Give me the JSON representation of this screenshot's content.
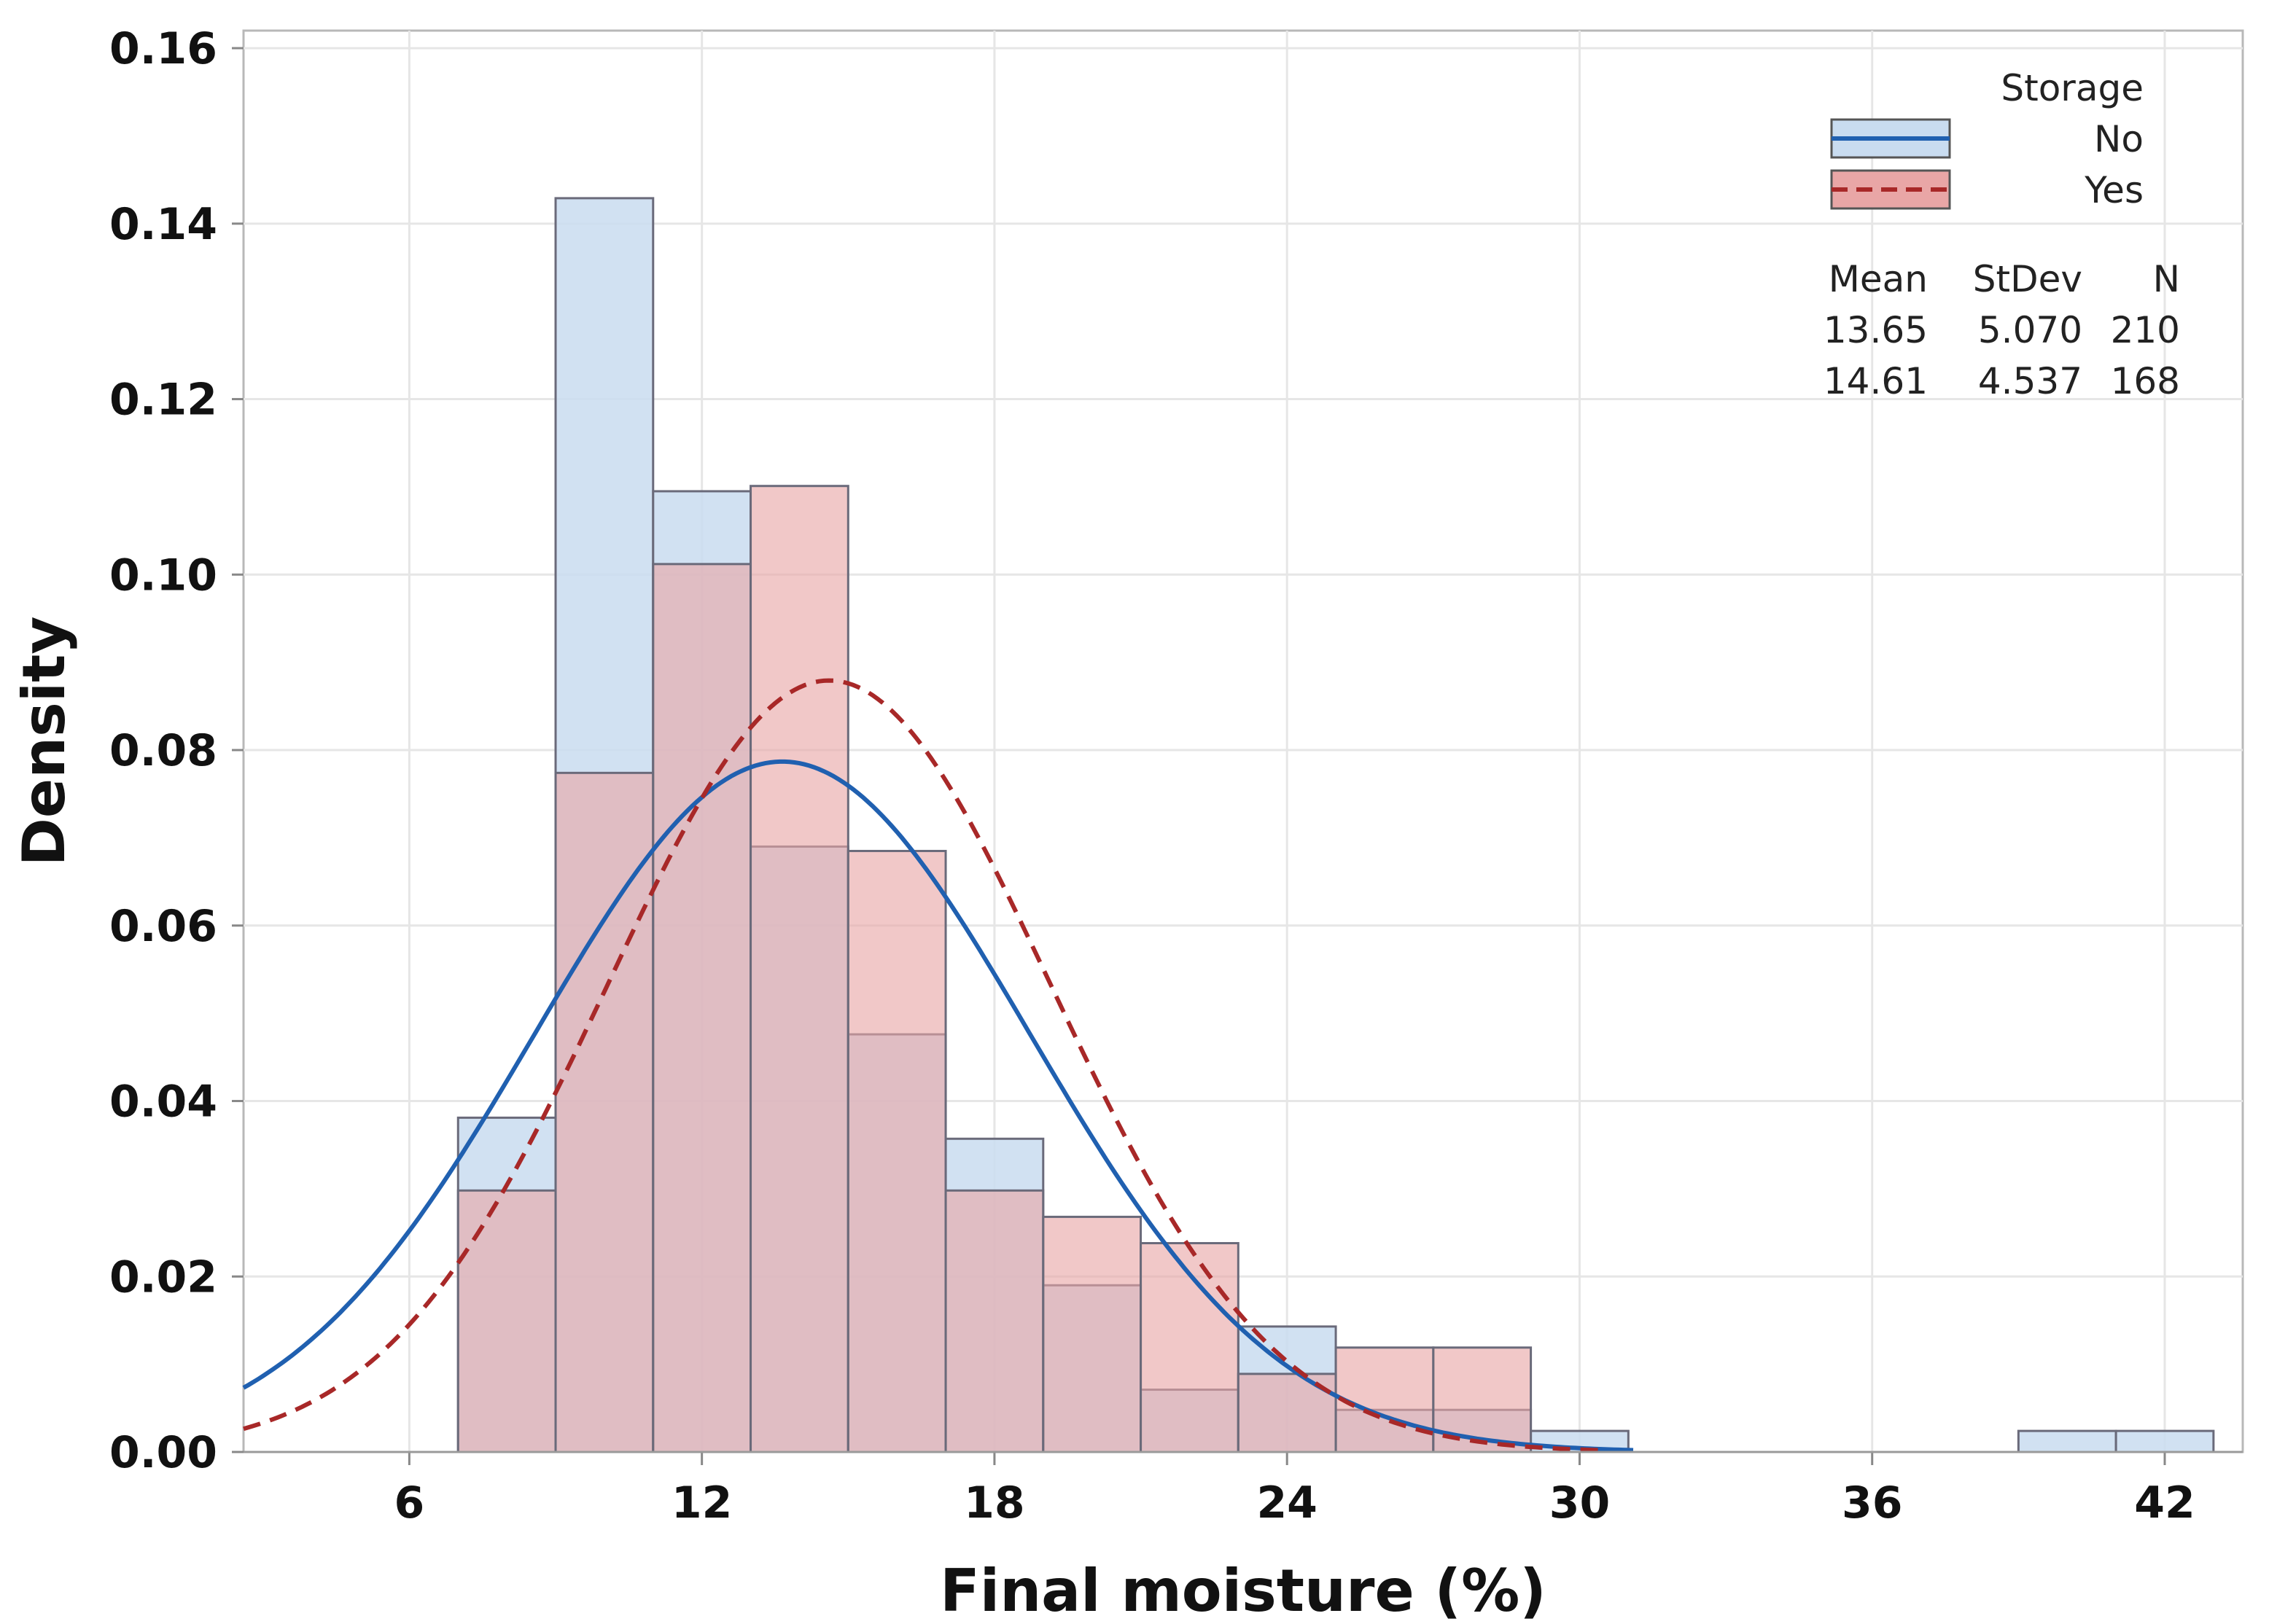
{
  "chart_data": {
    "type": "histogram",
    "xlabel": "Final moisture (%)",
    "ylabel": "Density",
    "xlim": [
      2.6,
      43.6
    ],
    "ylim": [
      0,
      0.162
    ],
    "x_ticks": [
      6,
      12,
      18,
      24,
      30,
      36,
      42
    ],
    "y_ticks": [
      0.0,
      0.02,
      0.04,
      0.06,
      0.08,
      0.1,
      0.12,
      0.14,
      0.16
    ],
    "y_tick_labels": [
      "0.00",
      "0.02",
      "0.04",
      "0.06",
      "0.08",
      "0.10",
      "0.12",
      "0.14",
      "0.16"
    ],
    "bin_edges": [
      7,
      9,
      11,
      13,
      15,
      17,
      19,
      21,
      23,
      25,
      27,
      29,
      31,
      33,
      35,
      37,
      39,
      41,
      43
    ],
    "grid": true,
    "legend": {
      "title": "Storage",
      "placement": "top-right",
      "stats_headers": [
        "Mean",
        "StDev",
        "N"
      ]
    },
    "series": [
      {
        "name": "No",
        "fill_color": "#c9dcf0",
        "line_color": "#2060b0",
        "line_style": "solid",
        "densities": [
          0.0381,
          0.1429,
          0.1095,
          0.069,
          0.0476,
          0.0357,
          0.019,
          0.0071,
          0.0143,
          0.0048,
          0.0048,
          0.0024,
          0.0,
          0.0,
          0.0,
          0.0,
          0.0024,
          0.0024
        ],
        "mean": 13.65,
        "stdev": 5.07,
        "n": 210,
        "mean_label": "13.65",
        "stdev_label": "5.070",
        "n_label": "210"
      },
      {
        "name": "Yes",
        "fill_color": "#e9a6a6",
        "line_color": "#a82828",
        "line_style": "dashed",
        "densities": [
          0.0298,
          0.0774,
          0.1012,
          0.1101,
          0.0685,
          0.0298,
          0.0268,
          0.0238,
          0.0089,
          0.0119,
          0.0119,
          0.0,
          0.0,
          0.0,
          0.0,
          0.0,
          0.0,
          0.0
        ],
        "mean": 14.61,
        "stdev": 4.537,
        "n": 168,
        "mean_label": "14.61",
        "stdev_label": "4.537",
        "n_label": "168"
      }
    ]
  }
}
